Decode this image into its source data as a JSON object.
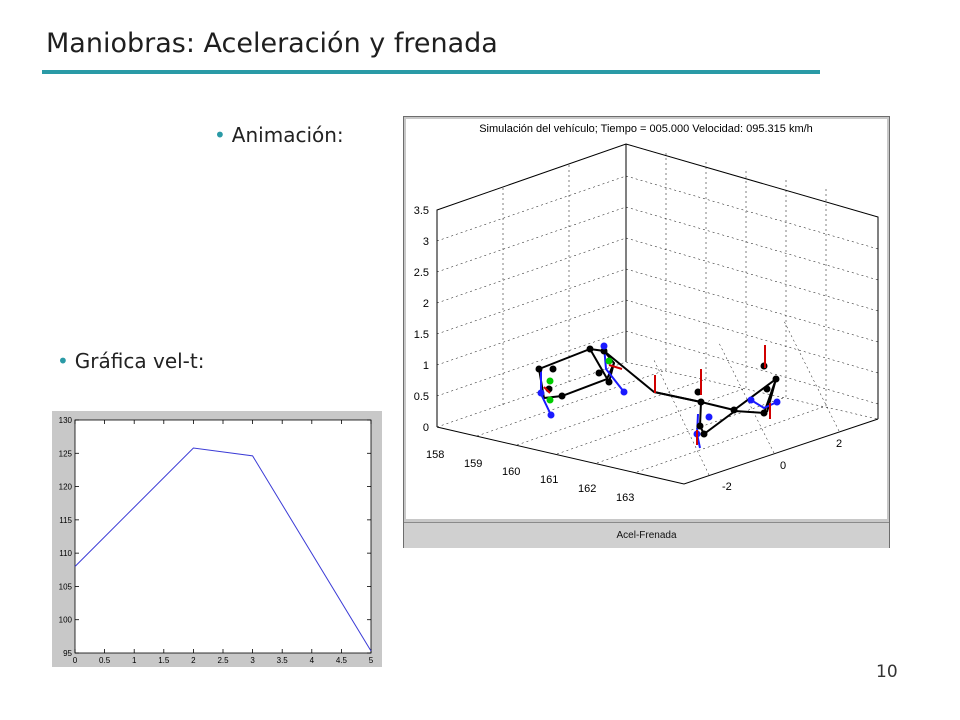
{
  "slide": {
    "title": "Maniobras: Aceleración y frenada",
    "bullet_animation": "Animación:",
    "bullet_graph": "Gráfica vel-t:",
    "page_number": "10",
    "accent_color": "#2a9aa6"
  },
  "animation": {
    "title": "Simulación del vehículo; Tiempo = 005.000  Velocidad: 095.315 km/h",
    "button_label": "Acel-Frenada",
    "z_ticks": [
      "0",
      "0.5",
      "1",
      "1.5",
      "2",
      "2.5",
      "3",
      "3.5"
    ],
    "x_ticks": [
      "158",
      "159",
      "160",
      "161",
      "162",
      "163"
    ],
    "y_ticks": [
      "-2",
      "0",
      "2"
    ],
    "colors": {
      "frame": "#000000",
      "wheel": "#1a1aff",
      "marker": "#00cc00",
      "force": "#d00000"
    }
  },
  "chart_data": {
    "type": "line",
    "title": "",
    "xlabel": "",
    "ylabel": "",
    "x": [
      0,
      2,
      3,
      5
    ],
    "series": [
      {
        "name": "",
        "color": "#3b3bd6",
        "values": [
          108,
          125.8,
          124.6,
          95.3
        ]
      }
    ],
    "xlim": [
      0,
      5
    ],
    "ylim": [
      95,
      130
    ],
    "x_ticks": [
      0,
      0.5,
      1,
      1.5,
      2,
      2.5,
      3,
      3.5,
      4,
      4.5,
      5
    ],
    "y_ticks": [
      95,
      100,
      105,
      110,
      115,
      120,
      125,
      130
    ],
    "grid": false
  }
}
